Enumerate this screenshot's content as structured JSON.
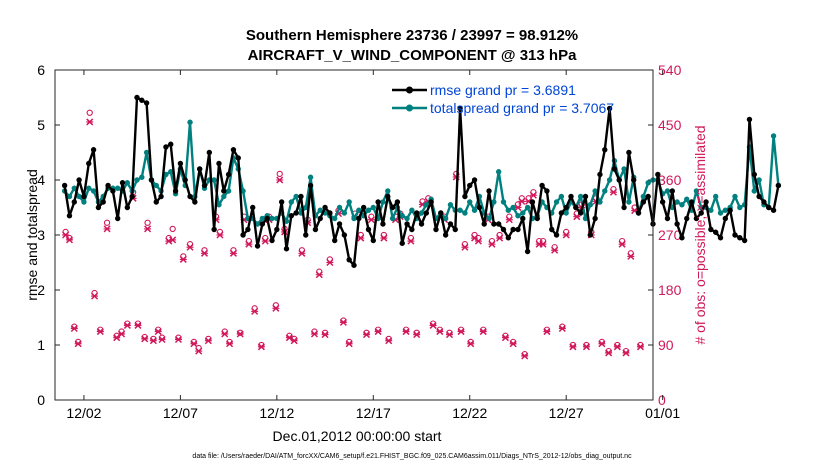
{
  "colors": {
    "rmse": "#000000",
    "spread": "#00807f",
    "obs": "#d0185a",
    "legend_text": "#0045d6"
  },
  "chart_data": {
    "type": "line",
    "title_line1": "Southern Hemisphere 23736 / 23997 = 98.912%",
    "title_line2": "AIRCRAFT_V_WIND_COMPONENT @ 313 hPa",
    "xlabel": "Dec.01,2012 00:00:00 start",
    "ylabel_left": "rmse and totalspread",
    "ylabel_right": "# of obs: o=possible; ×=assimilated",
    "footer": "data file: /Users/raeder/DAI/ATM_forcXX/CAM6_setup/f.e21.FHIST_BGC.f09_025.CAM6assim.011/Diags_NTrS_2012-12/obs_diag_output.nc",
    "xlim": [
      0.5,
      31.5
    ],
    "ylim_left": [
      0,
      6
    ],
    "ylim_right": [
      0,
      540
    ],
    "yticks_left": [
      0,
      1,
      2,
      3,
      4,
      5,
      6
    ],
    "yticks_right": [
      0,
      90,
      180,
      270,
      360,
      450,
      540
    ],
    "xticks": [
      {
        "day": 2,
        "label": "12/02"
      },
      {
        "day": 7,
        "label": "12/07"
      },
      {
        "day": 12,
        "label": "12/12"
      },
      {
        "day": 17,
        "label": "12/17"
      },
      {
        "day": 22,
        "label": "12/22"
      },
      {
        "day": 27,
        "label": "12/27"
      },
      {
        "day": 32,
        "label": "01/01"
      }
    ],
    "legend": [
      {
        "label": "rmse grand pr = 3.6891"
      },
      {
        "label": "totalspread grand pr = 3.7067"
      }
    ],
    "x_start": 1.0,
    "x_step": 0.25,
    "series": [
      {
        "name": "rmse",
        "values": [
          3.9,
          3.35,
          3.6,
          4.0,
          3.7,
          4.3,
          4.55,
          3.5,
          3.6,
          3.9,
          3.8,
          3.3,
          3.95,
          3.5,
          3.7,
          5.5,
          5.45,
          5.4,
          4.0,
          3.6,
          3.7,
          4.6,
          4.65,
          3.8,
          4.3,
          4.0,
          3.7,
          3.6,
          4.2,
          3.9,
          4.5,
          3.1,
          4.3,
          3.8,
          4.1,
          4.55,
          4.4,
          3.0,
          3.1,
          3.5,
          2.8,
          3.2,
          3.3,
          2.9,
          3.1,
          3.6,
          2.75,
          3.35,
          3.4,
          3.7,
          3.0,
          3.9,
          3.1,
          3.3,
          3.5,
          3.4,
          2.9,
          3.2,
          3.0,
          2.55,
          2.45,
          3.3,
          3.5,
          3.1,
          2.9,
          3.6,
          3.2,
          3.7,
          3.5,
          3.6,
          2.85,
          3.2,
          3.1,
          3.4,
          3.2,
          3.4,
          3.6,
          3.1,
          3.4,
          3.0,
          3.2,
          3.1,
          5.3,
          3.7,
          3.9,
          4.0,
          3.5,
          3.2,
          3.8,
          3.2,
          3.2,
          3.1,
          2.95,
          3.1,
          3.1,
          3.3,
          2.7,
          3.6,
          3.3,
          3.9,
          3.8,
          3.1,
          3.0,
          3.4,
          3.5,
          3.7,
          3.5,
          3.4,
          3.7,
          3.0,
          3.3,
          4.1,
          4.55,
          5.3,
          4.2,
          4.0,
          3.5,
          4.5,
          4.0,
          3.4,
          3.6,
          3.7,
          3.2,
          4.1,
          3.6,
          3.3,
          3.8,
          3.2,
          2.95,
          3.3,
          3.6,
          3.3,
          3.4,
          3.6,
          3.1,
          3.05,
          2.95,
          3.3,
          3.45,
          3.0,
          2.95,
          2.9,
          5.1,
          4.1,
          3.7,
          3.6,
          3.5,
          3.45,
          3.9
        ]
      },
      {
        "name": "totalspread",
        "values": [
          3.8,
          3.7,
          3.85,
          3.7,
          3.6,
          3.85,
          3.8,
          3.6,
          3.7,
          3.85,
          3.85,
          3.85,
          3.8,
          3.95,
          3.8,
          4.0,
          4.05,
          4.5,
          4.0,
          3.9,
          3.8,
          4.1,
          4.15,
          3.75,
          4.2,
          3.9,
          5.05,
          3.7,
          4.2,
          3.85,
          4.0,
          4.0,
          3.55,
          3.7,
          3.8,
          4.4,
          4.2,
          3.8,
          3.3,
          3.3,
          3.2,
          3.3,
          3.35,
          3.3,
          3.3,
          3.4,
          3.25,
          3.6,
          3.7,
          3.4,
          3.5,
          4.05,
          3.35,
          3.45,
          3.4,
          3.35,
          3.3,
          3.5,
          3.4,
          3.6,
          3.3,
          3.45,
          3.35,
          3.45,
          3.5,
          3.3,
          3.6,
          3.8,
          3.3,
          3.5,
          3.35,
          3.3,
          3.45,
          3.3,
          3.4,
          3.55,
          3.65,
          3.3,
          3.4,
          3.3,
          3.55,
          3.45,
          3.45,
          3.4,
          3.6,
          3.45,
          3.7,
          3.4,
          3.3,
          3.6,
          4.15,
          3.6,
          3.45,
          3.5,
          3.35,
          3.4,
          3.5,
          3.3,
          3.35,
          3.6,
          3.5,
          3.4,
          3.6,
          3.7,
          3.4,
          3.6,
          3.5,
          3.7,
          3.3,
          3.55,
          3.8,
          3.6,
          3.8,
          4.0,
          4.35,
          4.0,
          4.2,
          3.6,
          4.05,
          3.4,
          3.7,
          3.95,
          4.0,
          4.0,
          3.75,
          3.8,
          3.5,
          3.6,
          3.55,
          3.65,
          3.45,
          3.8,
          3.5,
          3.5,
          3.45,
          3.7,
          3.4,
          3.45,
          3.5,
          3.7,
          3.5,
          3.55,
          4.6,
          3.8,
          4.0,
          3.55,
          3.5,
          4.8,
          3.9
        ]
      }
    ],
    "obs_possible": [
      {
        "x": 1.05,
        "y": 275
      },
      {
        "x": 1.25,
        "y": 265
      },
      {
        "x": 1.5,
        "y": 120
      },
      {
        "x": 1.7,
        "y": 95
      },
      {
        "x": 2.3,
        "y": 470
      },
      {
        "x": 2.55,
        "y": 175
      },
      {
        "x": 2.85,
        "y": 115
      },
      {
        "x": 3.2,
        "y": 290
      },
      {
        "x": 3.7,
        "y": 105
      },
      {
        "x": 3.95,
        "y": 112
      },
      {
        "x": 4.25,
        "y": 125
      },
      {
        "x": 4.55,
        "y": 340
      },
      {
        "x": 4.8,
        "y": 125
      },
      {
        "x": 5.15,
        "y": 103
      },
      {
        "x": 5.3,
        "y": 290
      },
      {
        "x": 5.6,
        "y": 100
      },
      {
        "x": 5.85,
        "y": 115
      },
      {
        "x": 6.05,
        "y": 102
      },
      {
        "x": 6.4,
        "y": 265
      },
      {
        "x": 6.6,
        "y": 280
      },
      {
        "x": 6.9,
        "y": 102
      },
      {
        "x": 7.15,
        "y": 235
      },
      {
        "x": 7.5,
        "y": 255
      },
      {
        "x": 7.7,
        "y": 95
      },
      {
        "x": 7.95,
        "y": 85
      },
      {
        "x": 8.25,
        "y": 245
      },
      {
        "x": 8.45,
        "y": 100
      },
      {
        "x": 8.85,
        "y": 300
      },
      {
        "x": 9.05,
        "y": 275
      },
      {
        "x": 9.3,
        "y": 112
      },
      {
        "x": 9.55,
        "y": 95
      },
      {
        "x": 9.75,
        "y": 245
      },
      {
        "x": 10.1,
        "y": 110
      },
      {
        "x": 10.3,
        "y": 300
      },
      {
        "x": 10.55,
        "y": 260
      },
      {
        "x": 10.85,
        "y": 150
      },
      {
        "x": 11.2,
        "y": 90
      },
      {
        "x": 11.4,
        "y": 265
      },
      {
        "x": 11.6,
        "y": 300
      },
      {
        "x": 11.95,
        "y": 155
      },
      {
        "x": 12.15,
        "y": 370
      },
      {
        "x": 12.4,
        "y": 280
      },
      {
        "x": 12.65,
        "y": 105
      },
      {
        "x": 12.9,
        "y": 100
      },
      {
        "x": 13.3,
        "y": 245
      },
      {
        "x": 13.6,
        "y": 295
      },
      {
        "x": 13.95,
        "y": 112
      },
      {
        "x": 14.2,
        "y": 210
      },
      {
        "x": 14.5,
        "y": 110
      },
      {
        "x": 14.75,
        "y": 230
      },
      {
        "x": 15.2,
        "y": 310
      },
      {
        "x": 15.45,
        "y": 130
      },
      {
        "x": 15.75,
        "y": 95
      },
      {
        "x": 16.05,
        "y": 305
      },
      {
        "x": 16.35,
        "y": 270
      },
      {
        "x": 16.65,
        "y": 110
      },
      {
        "x": 16.9,
        "y": 300
      },
      {
        "x": 17.25,
        "y": 115
      },
      {
        "x": 17.55,
        "y": 270
      },
      {
        "x": 17.8,
        "y": 100
      },
      {
        "x": 18.15,
        "y": 300
      },
      {
        "x": 18.4,
        "y": 305
      },
      {
        "x": 18.7,
        "y": 115
      },
      {
        "x": 18.95,
        "y": 265
      },
      {
        "x": 19.25,
        "y": 110
      },
      {
        "x": 19.55,
        "y": 325
      },
      {
        "x": 19.85,
        "y": 330
      },
      {
        "x": 20.1,
        "y": 125
      },
      {
        "x": 20.45,
        "y": 115
      },
      {
        "x": 20.7,
        "y": 300
      },
      {
        "x": 20.95,
        "y": 110
      },
      {
        "x": 21.3,
        "y": 370
      },
      {
        "x": 21.55,
        "y": 115
      },
      {
        "x": 21.75,
        "y": 255
      },
      {
        "x": 22.05,
        "y": 95
      },
      {
        "x": 22.25,
        "y": 270
      },
      {
        "x": 22.45,
        "y": 265
      },
      {
        "x": 22.7,
        "y": 115
      },
      {
        "x": 22.95,
        "y": 300
      },
      {
        "x": 23.15,
        "y": 260
      },
      {
        "x": 23.55,
        "y": 270
      },
      {
        "x": 23.85,
        "y": 105
      },
      {
        "x": 24.05,
        "y": 300
      },
      {
        "x": 24.25,
        "y": 95
      },
      {
        "x": 24.5,
        "y": 320
      },
      {
        "x": 24.7,
        "y": 330
      },
      {
        "x": 24.85,
        "y": 75
      },
      {
        "x": 25.05,
        "y": 330
      },
      {
        "x": 25.3,
        "y": 340
      },
      {
        "x": 25.6,
        "y": 260
      },
      {
        "x": 25.8,
        "y": 260
      },
      {
        "x": 26.0,
        "y": 115
      },
      {
        "x": 26.4,
        "y": 250
      },
      {
        "x": 26.8,
        "y": 120
      },
      {
        "x": 27.0,
        "y": 275
      },
      {
        "x": 27.35,
        "y": 90
      },
      {
        "x": 27.55,
        "y": 305
      },
      {
        "x": 27.8,
        "y": 320
      },
      {
        "x": 28.05,
        "y": 90
      },
      {
        "x": 28.3,
        "y": 275
      },
      {
        "x": 28.55,
        "y": 330
      },
      {
        "x": 28.85,
        "y": 95
      },
      {
        "x": 29.2,
        "y": 80
      },
      {
        "x": 29.45,
        "y": 345
      },
      {
        "x": 29.65,
        "y": 90
      },
      {
        "x": 29.9,
        "y": 260
      },
      {
        "x": 30.1,
        "y": 80
      },
      {
        "x": 30.35,
        "y": 240
      },
      {
        "x": 30.55,
        "y": 315
      },
      {
        "x": 30.85,
        "y": 90
      }
    ],
    "obs_assimilated": [
      {
        "x": 1.05,
        "y": 270
      },
      {
        "x": 1.25,
        "y": 262
      },
      {
        "x": 1.5,
        "y": 117
      },
      {
        "x": 1.7,
        "y": 92
      },
      {
        "x": 2.3,
        "y": 455
      },
      {
        "x": 2.55,
        "y": 170
      },
      {
        "x": 2.85,
        "y": 112
      },
      {
        "x": 3.2,
        "y": 280
      },
      {
        "x": 3.7,
        "y": 102
      },
      {
        "x": 3.95,
        "y": 108
      },
      {
        "x": 4.25,
        "y": 122
      },
      {
        "x": 4.55,
        "y": 330
      },
      {
        "x": 4.8,
        "y": 122
      },
      {
        "x": 5.15,
        "y": 100
      },
      {
        "x": 5.3,
        "y": 280
      },
      {
        "x": 5.6,
        "y": 97
      },
      {
        "x": 5.85,
        "y": 112
      },
      {
        "x": 6.05,
        "y": 99
      },
      {
        "x": 6.4,
        "y": 260
      },
      {
        "x": 6.6,
        "y": 262
      },
      {
        "x": 6.9,
        "y": 99
      },
      {
        "x": 7.15,
        "y": 230
      },
      {
        "x": 7.5,
        "y": 250
      },
      {
        "x": 7.7,
        "y": 92
      },
      {
        "x": 7.95,
        "y": 80
      },
      {
        "x": 8.25,
        "y": 240
      },
      {
        "x": 8.45,
        "y": 97
      },
      {
        "x": 8.85,
        "y": 295
      },
      {
        "x": 9.05,
        "y": 270
      },
      {
        "x": 9.3,
        "y": 108
      },
      {
        "x": 9.55,
        "y": 92
      },
      {
        "x": 9.75,
        "y": 240
      },
      {
        "x": 10.1,
        "y": 108
      },
      {
        "x": 10.3,
        "y": 295
      },
      {
        "x": 10.55,
        "y": 255
      },
      {
        "x": 10.85,
        "y": 145
      },
      {
        "x": 11.2,
        "y": 87
      },
      {
        "x": 11.4,
        "y": 260
      },
      {
        "x": 11.6,
        "y": 295
      },
      {
        "x": 11.95,
        "y": 150
      },
      {
        "x": 12.15,
        "y": 360
      },
      {
        "x": 12.4,
        "y": 275
      },
      {
        "x": 12.65,
        "y": 102
      },
      {
        "x": 12.9,
        "y": 97
      },
      {
        "x": 13.3,
        "y": 240
      },
      {
        "x": 13.6,
        "y": 290
      },
      {
        "x": 13.95,
        "y": 108
      },
      {
        "x": 14.2,
        "y": 205
      },
      {
        "x": 14.5,
        "y": 107
      },
      {
        "x": 14.75,
        "y": 225
      },
      {
        "x": 15.2,
        "y": 305
      },
      {
        "x": 15.45,
        "y": 127
      },
      {
        "x": 15.75,
        "y": 92
      },
      {
        "x": 16.05,
        "y": 300
      },
      {
        "x": 16.35,
        "y": 265
      },
      {
        "x": 16.65,
        "y": 107
      },
      {
        "x": 16.9,
        "y": 295
      },
      {
        "x": 17.25,
        "y": 112
      },
      {
        "x": 17.55,
        "y": 265
      },
      {
        "x": 17.8,
        "y": 97
      },
      {
        "x": 18.15,
        "y": 295
      },
      {
        "x": 18.4,
        "y": 300
      },
      {
        "x": 18.7,
        "y": 112
      },
      {
        "x": 18.95,
        "y": 260
      },
      {
        "x": 19.25,
        "y": 107
      },
      {
        "x": 19.55,
        "y": 320
      },
      {
        "x": 19.85,
        "y": 325
      },
      {
        "x": 20.1,
        "y": 122
      },
      {
        "x": 20.45,
        "y": 112
      },
      {
        "x": 20.7,
        "y": 295
      },
      {
        "x": 20.95,
        "y": 107
      },
      {
        "x": 21.3,
        "y": 365
      },
      {
        "x": 21.55,
        "y": 112
      },
      {
        "x": 21.75,
        "y": 250
      },
      {
        "x": 22.05,
        "y": 92
      },
      {
        "x": 22.25,
        "y": 265
      },
      {
        "x": 22.45,
        "y": 260
      },
      {
        "x": 22.7,
        "y": 112
      },
      {
        "x": 22.95,
        "y": 295
      },
      {
        "x": 23.15,
        "y": 255
      },
      {
        "x": 23.55,
        "y": 265
      },
      {
        "x": 23.85,
        "y": 102
      },
      {
        "x": 24.05,
        "y": 295
      },
      {
        "x": 24.25,
        "y": 92
      },
      {
        "x": 24.5,
        "y": 315
      },
      {
        "x": 24.7,
        "y": 325
      },
      {
        "x": 24.85,
        "y": 72
      },
      {
        "x": 25.05,
        "y": 325
      },
      {
        "x": 25.3,
        "y": 335
      },
      {
        "x": 25.6,
        "y": 255
      },
      {
        "x": 25.8,
        "y": 255
      },
      {
        "x": 26.0,
        "y": 112
      },
      {
        "x": 26.4,
        "y": 245
      },
      {
        "x": 26.8,
        "y": 117
      },
      {
        "x": 27.0,
        "y": 270
      },
      {
        "x": 27.35,
        "y": 87
      },
      {
        "x": 27.55,
        "y": 300
      },
      {
        "x": 27.8,
        "y": 315
      },
      {
        "x": 28.05,
        "y": 87
      },
      {
        "x": 28.3,
        "y": 270
      },
      {
        "x": 28.55,
        "y": 325
      },
      {
        "x": 28.85,
        "y": 92
      },
      {
        "x": 29.2,
        "y": 77
      },
      {
        "x": 29.45,
        "y": 340
      },
      {
        "x": 29.65,
        "y": 87
      },
      {
        "x": 29.9,
        "y": 255
      },
      {
        "x": 30.1,
        "y": 77
      },
      {
        "x": 30.35,
        "y": 235
      },
      {
        "x": 30.55,
        "y": 310
      },
      {
        "x": 30.85,
        "y": 87
      }
    ]
  }
}
